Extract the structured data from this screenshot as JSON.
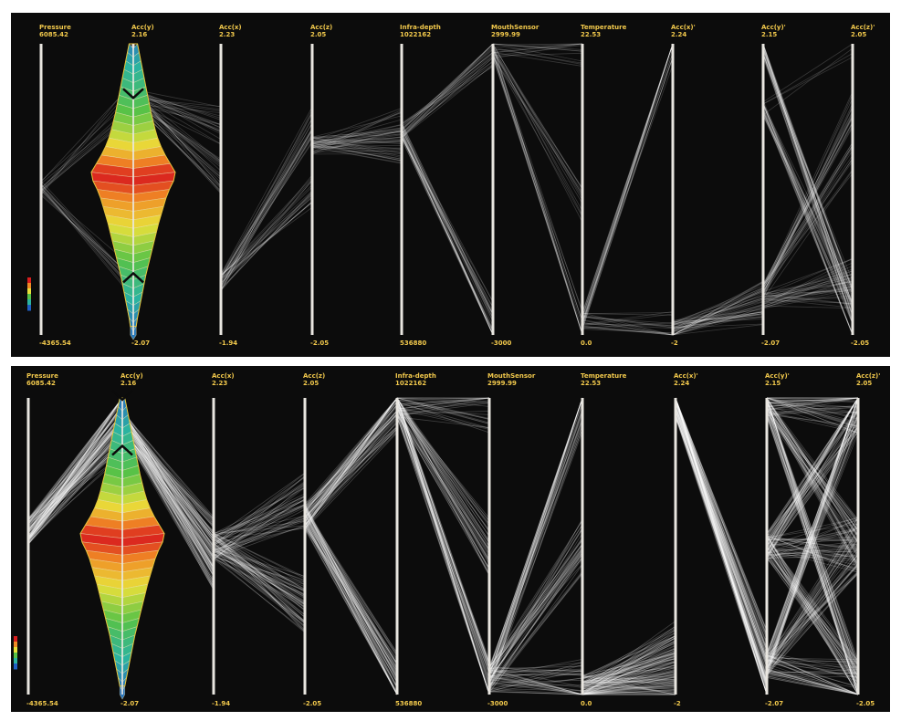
{
  "colors": {
    "background": "#0c0c0c",
    "axis": "#e9e6e0",
    "label": "#f2c94c",
    "polyline": "#ffffff",
    "colorbar": [
      "#1f5fc4",
      "#2bb3a0",
      "#58c247",
      "#e8e03a",
      "#f08a25",
      "#d91e1e"
    ]
  },
  "chart_data": [
    {
      "type": "parallel-coordinates",
      "panel": "top",
      "axes": [
        {
          "name": "Pressure",
          "max": "6085.42",
          "min": "-4365.54"
        },
        {
          "name": "Acc(y)",
          "max": "2.16",
          "min": "-2.07"
        },
        {
          "name": "Acc(x)",
          "max": "2.23",
          "min": "-1.94"
        },
        {
          "name": "Acc(z)",
          "max": "2.05",
          "min": "-2.05"
        },
        {
          "name": "Infra-depth",
          "max": "1022162",
          "min": "536880"
        },
        {
          "name": "MouthSensor",
          "max": "2999.99",
          "min": "-3000"
        },
        {
          "name": "Temperature",
          "max": "22.53",
          "min": "0.0"
        },
        {
          "name": "Acc(x)'",
          "max": "2.24",
          "min": "-2"
        },
        {
          "name": "Acc(y)'",
          "max": "2.15",
          "min": "-2.07"
        },
        {
          "name": "Acc(z)'",
          "max": "2.05",
          "min": "-2.05"
        }
      ],
      "histogram_axis": "Acc(y)",
      "histogram_bins": [
        0.1,
        0.14,
        0.18,
        0.22,
        0.26,
        0.3,
        0.34,
        0.38,
        0.42,
        0.47,
        0.52,
        0.58,
        0.66,
        0.76,
        0.88,
        1.0,
        0.96,
        0.86,
        0.78,
        0.72,
        0.66,
        0.6,
        0.55,
        0.5,
        0.45,
        0.4,
        0.35,
        0.3,
        0.26,
        0.22,
        0.18,
        0.14,
        0.1,
        0.07
      ],
      "brushed_range": [
        -1.2,
        1.4
      ],
      "flows": [
        {
          "from": 0.5,
          "to": [
            0.82,
            0.18
          ],
          "weight": 0.35
        },
        {
          "from": 0.82,
          "to": [
            0.72,
            0.55
          ],
          "weight": 0.6
        },
        {
          "from": 0.18,
          "to": [
            0.72,
            0.5
          ],
          "weight": 0.6
        },
        {
          "from": 0.65,
          "to": [
            0.65,
            0.72
          ],
          "weight": 0.7
        },
        {
          "from": 0.7,
          "to": [
            0.98,
            0.05
          ],
          "weight": 0.8
        },
        {
          "from": 0.98,
          "to": [
            0.98,
            0.02,
            0.45
          ],
          "weight": 0.6
        },
        {
          "from": 0.05,
          "to": [
            0.98,
            0.02
          ],
          "weight": 0.6
        },
        {
          "from": 0.02,
          "to": [
            0.12,
            0.1
          ],
          "weight": 0.7
        },
        {
          "from": 0.98,
          "to": [
            0.1,
            0.12
          ],
          "weight": 0.5
        },
        {
          "from": 0.12,
          "to": [
            0.15,
            0.2
          ],
          "weight": 0.5
        },
        {
          "from": 0.15,
          "to": [
            0.78,
            0.6
          ],
          "weight": 0.45
        },
        {
          "from": 0.78,
          "to": [
            0.1,
            0.02,
            0.98
          ],
          "weight": 0.45
        }
      ]
    },
    {
      "type": "parallel-coordinates",
      "panel": "bottom",
      "axes": [
        {
          "name": "Pressure",
          "max": "6085.42",
          "min": "-4365.54"
        },
        {
          "name": "Acc(y)",
          "max": "2.16",
          "min": "-2.07"
        },
        {
          "name": "Acc(x)",
          "max": "2.23",
          "min": "-1.94"
        },
        {
          "name": "Acc(z)",
          "max": "2.05",
          "min": "-2.05"
        },
        {
          "name": "Infra-depth",
          "max": "1022162",
          "min": "536880"
        },
        {
          "name": "MouthSensor",
          "max": "2999.99",
          "min": "-3000"
        },
        {
          "name": "Temperature",
          "max": "22.53",
          "min": "0.0"
        },
        {
          "name": "Acc(x)'",
          "max": "2.24",
          "min": "-2"
        },
        {
          "name": "Acc(y)'",
          "max": "2.15",
          "min": "-2.07"
        },
        {
          "name": "Acc(z)'",
          "max": "2.05",
          "min": "-2.05"
        }
      ],
      "histogram_axis": "Acc(y)",
      "histogram_bins": [
        0.06,
        0.1,
        0.14,
        0.18,
        0.22,
        0.26,
        0.3,
        0.34,
        0.38,
        0.42,
        0.47,
        0.52,
        0.58,
        0.66,
        0.76,
        0.88,
        1.0,
        0.96,
        0.86,
        0.78,
        0.72,
        0.66,
        0.6,
        0.55,
        0.5,
        0.45,
        0.4,
        0.35,
        0.3,
        0.26,
        0.22,
        0.18,
        0.14,
        0.1,
        0.06
      ],
      "brushed_range": [
        1.45,
        2.16
      ],
      "flows": [
        {
          "from": 0.55,
          "to": [
            0.95,
            0.9
          ],
          "weight": 0.9
        },
        {
          "from": 0.92,
          "to": [
            0.45,
            0.5
          ],
          "weight": 0.9
        },
        {
          "from": 0.5,
          "to": [
            0.65,
            0.3
          ],
          "weight": 0.8
        },
        {
          "from": 0.6,
          "to": [
            0.98,
            0.05
          ],
          "weight": 1.0
        },
        {
          "from": 0.98,
          "to": [
            0.98,
            0.02,
            0.5
          ],
          "weight": 0.9
        },
        {
          "from": 0.05,
          "to": [
            0.98,
            0.02,
            0.5
          ],
          "weight": 0.9
        },
        {
          "from": 0.02,
          "to": [
            0.1,
            0.15,
            0.05
          ],
          "weight": 1.0
        },
        {
          "from": 0.98,
          "to": [
            0.12,
            0.05
          ],
          "weight": 0.8
        },
        {
          "from": 0.1,
          "to": [
            0.98,
            0.02,
            0.5
          ],
          "weight": 0.9
        },
        {
          "from": 0.98,
          "to": [
            0.98,
            0.02,
            0.5
          ],
          "weight": 0.9
        },
        {
          "from": 0.5,
          "to": [
            0.98,
            0.02,
            0.5
          ],
          "weight": 0.9
        }
      ]
    }
  ]
}
